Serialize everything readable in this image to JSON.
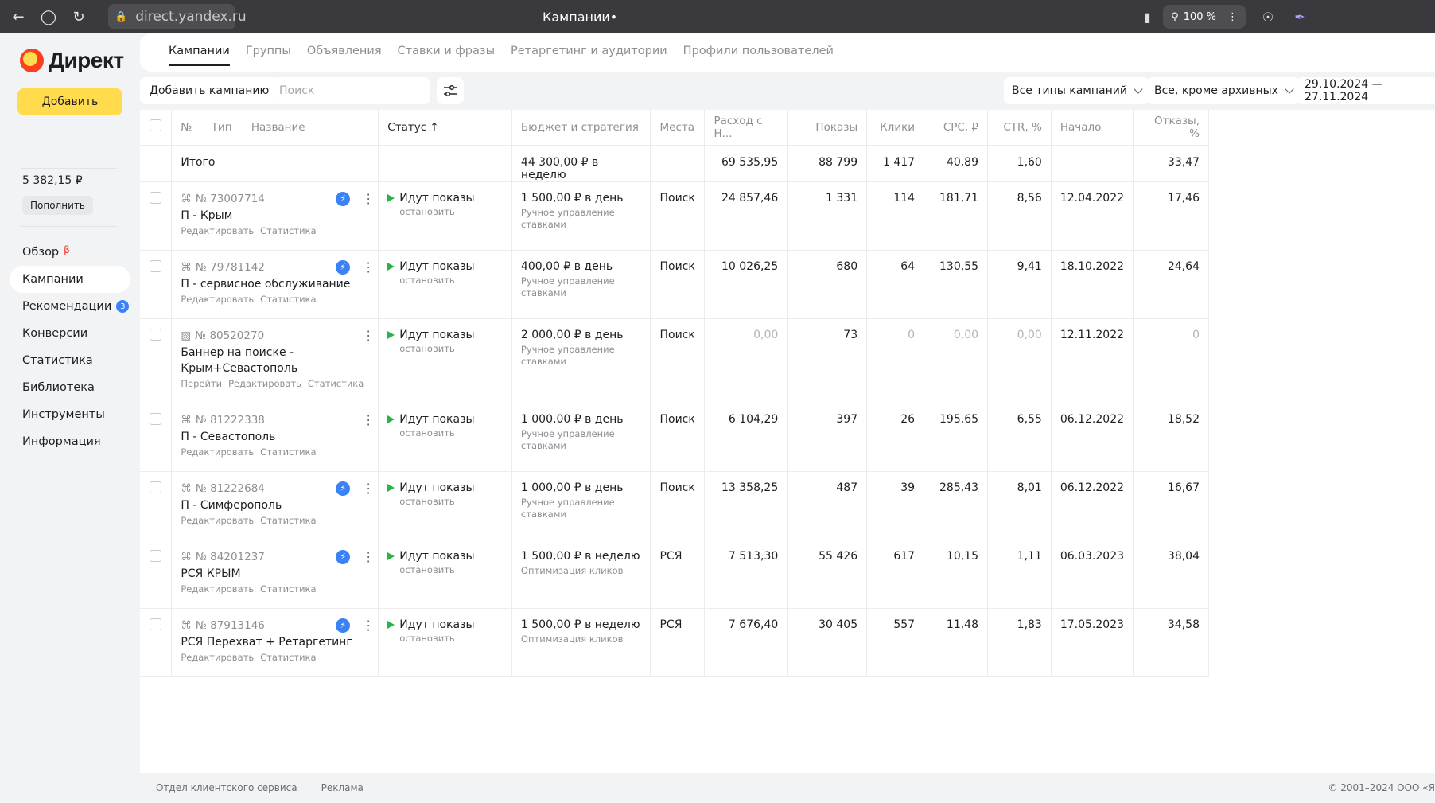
{
  "browser": {
    "url": "direct.yandex.ru",
    "tab_title": "Кампании•",
    "zoom": "100 %"
  },
  "sidebar": {
    "logo": "Директ",
    "add_button": "Добавить",
    "balance": "5 382,15 ₽",
    "topup": "Пополнить",
    "nav": [
      {
        "label": "Обзор",
        "beta": "β"
      },
      {
        "label": "Кампании"
      },
      {
        "label": "Рекомендации",
        "badge": "3"
      },
      {
        "label": "Конверсии"
      },
      {
        "label": "Статистика"
      },
      {
        "label": "Библиотека"
      },
      {
        "label": "Инструменты"
      },
      {
        "label": "Информация"
      }
    ]
  },
  "tabs": [
    "Кампании",
    "Группы",
    "Объявления",
    "Ставки и фразы",
    "Ретаргетинг и аудитории",
    "Профили пользователей"
  ],
  "toolbar": {
    "add_campaign": "Добавить кампанию",
    "search_placeholder": "Поиск",
    "type_filter": "Все типы кампаний",
    "archive_filter": "Все, кроме архивных",
    "date_range": "29.10.2024 — 27.11.2024"
  },
  "table": {
    "headers": {
      "num": "№",
      "type": "Тип",
      "name": "Название",
      "status": "Статус ↑",
      "budget": "Бюджет и стратегия",
      "places": "Места",
      "spend": "Расход с Н...",
      "impressions": "Показы",
      "clicks": "Клики",
      "cpc": "CPC, ₽",
      "ctr": "CTR, %",
      "start": "Начало",
      "bounce": "Отказы, %"
    },
    "total": {
      "label": "Итого",
      "budget": "44 300,00 ₽ в неделю",
      "spend": "69 535,95",
      "impressions": "88 799",
      "clicks": "1 417",
      "cpc": "40,89",
      "ctr": "1,60",
      "bounce": "33,47"
    },
    "rows": [
      {
        "id": "№ 73007714",
        "name": "П - Крым",
        "links": [
          "Редактировать",
          "Статистика"
        ],
        "status": "Идут показы",
        "stop": "остановить",
        "budget": "1 500,00 ₽ в день",
        "strategy": "Ручное управление ставками",
        "places": "Поиск",
        "spend": "24 857,46",
        "impressions": "1 331",
        "clicks": "114",
        "cpc": "181,71",
        "ctr": "8,56",
        "start": "12.04.2022",
        "bounce": "17,46"
      },
      {
        "id": "№ 79781142",
        "name": "П - сервисное обслуживание",
        "links": [
          "Редактировать",
          "Статистика"
        ],
        "status": "Идут показы",
        "stop": "остановить",
        "budget": "400,00 ₽ в день",
        "strategy": "Ручное управление ставками",
        "places": "Поиск",
        "spend": "10 026,25",
        "impressions": "680",
        "clicks": "64",
        "cpc": "130,55",
        "ctr": "9,41",
        "start": "18.10.2022",
        "bounce": "24,64"
      },
      {
        "id": "№ 80520270",
        "name": "Баннер на поиске - Крым+Севастополь",
        "links": [
          "Перейти",
          "Редактировать",
          "Статистика"
        ],
        "status": "Идут показы",
        "stop": "остановить",
        "budget": "2 000,00 ₽ в день",
        "strategy": "Ручное управление ставками",
        "places": "Поиск",
        "spend": "0,00",
        "impressions": "73",
        "clicks": "0",
        "cpc": "0,00",
        "ctr": "0,00",
        "start": "12.11.2022",
        "bounce": "0"
      },
      {
        "id": "№ 81222338",
        "name": "П - Севастополь",
        "links": [
          "Редактировать",
          "Статистика"
        ],
        "status": "Идут показы",
        "stop": "остановить",
        "budget": "1 000,00 ₽ в день",
        "strategy": "Ручное управление ставками",
        "places": "Поиск",
        "spend": "6 104,29",
        "impressions": "397",
        "clicks": "26",
        "cpc": "195,65",
        "ctr": "6,55",
        "start": "06.12.2022",
        "bounce": "18,52"
      },
      {
        "id": "№ 81222684",
        "name": "П - Симферополь",
        "links": [
          "Редактировать",
          "Статистика"
        ],
        "status": "Идут показы",
        "stop": "остановить",
        "budget": "1 000,00 ₽ в день",
        "strategy": "Ручное управление ставками",
        "places": "Поиск",
        "spend": "13 358,25",
        "impressions": "487",
        "clicks": "39",
        "cpc": "285,43",
        "ctr": "8,01",
        "start": "06.12.2022",
        "bounce": "16,67"
      },
      {
        "id": "№ 84201237",
        "name": "РСЯ КРЫМ",
        "links": [
          "Редактировать",
          "Статистика"
        ],
        "status": "Идут показы",
        "stop": "остановить",
        "budget": "1 500,00 ₽ в неделю",
        "strategy": "Оптимизация кликов",
        "places": "РСЯ",
        "spend": "7 513,30",
        "impressions": "55 426",
        "clicks": "617",
        "cpc": "10,15",
        "ctr": "1,11",
        "start": "06.03.2023",
        "bounce": "38,04"
      },
      {
        "id": "№ 87913146",
        "name": "РСЯ Перехват + Ретаргетинг",
        "links": [
          "Редактировать",
          "Статистика"
        ],
        "status": "Идут показы",
        "stop": "остановить",
        "budget": "1 500,00 ₽ в неделю",
        "strategy": "Оптимизация кликов",
        "places": "РСЯ",
        "spend": "7 676,40",
        "impressions": "30 405",
        "clicks": "557",
        "cpc": "11,48",
        "ctr": "1,83",
        "start": "17.05.2023",
        "bounce": "34,58"
      }
    ]
  },
  "footer": {
    "support": "Отдел клиентского сервиса",
    "ads": "Реклама",
    "copyright": "© 2001–2024  ООО «Я"
  }
}
